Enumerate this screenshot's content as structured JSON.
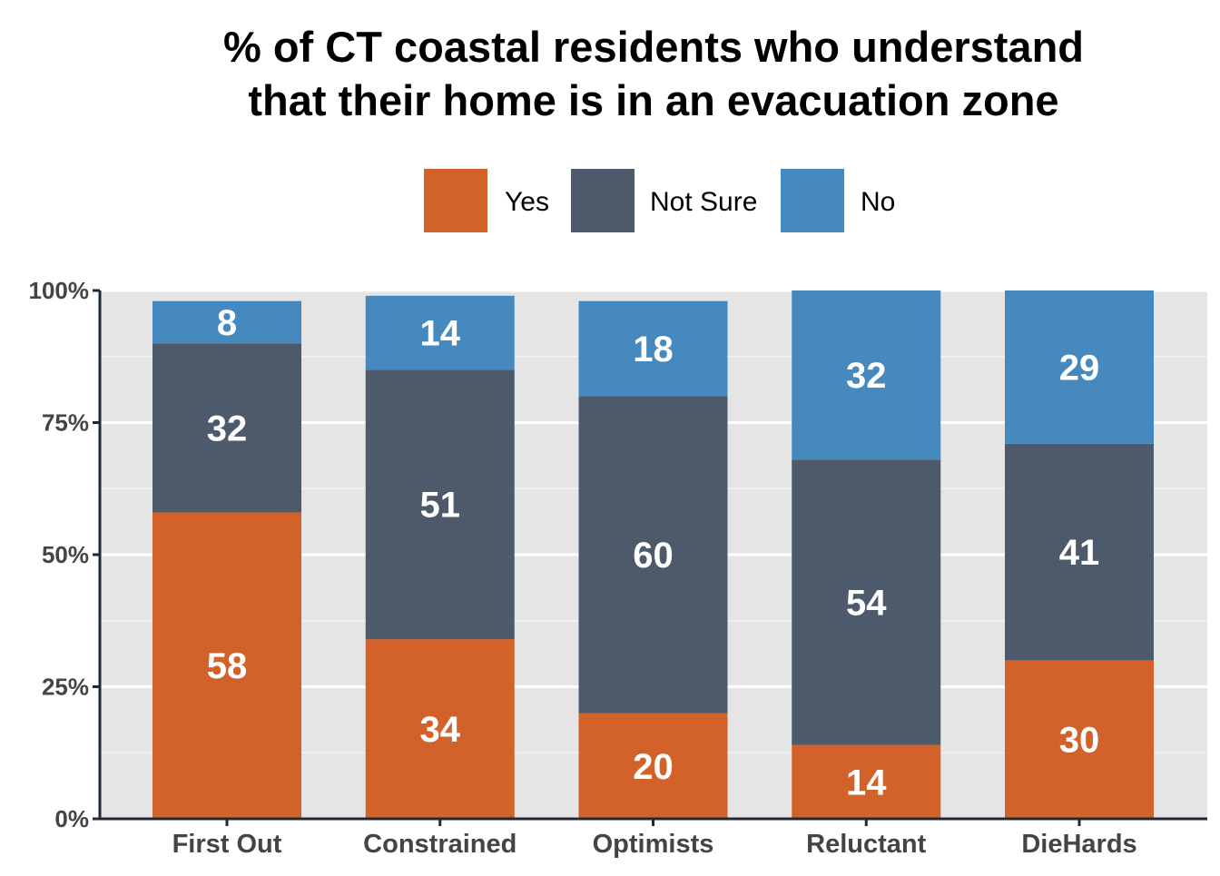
{
  "chart_data": {
    "type": "bar",
    "stacked": true,
    "title_lines": [
      "% of CT coastal residents who understand",
      "that their home is in an evacuation zone"
    ],
    "categories": [
      "First Out",
      "Constrained",
      "Optimists",
      "Reluctant",
      "DieHards"
    ],
    "series": [
      {
        "name": "Yes",
        "color": "#d2622a",
        "values": [
          58,
          34,
          20,
          14,
          30
        ],
        "labels": [
          "58",
          "34",
          "20",
          "14",
          "30"
        ]
      },
      {
        "name": "Not Sure",
        "color": "#4d5a6b",
        "values": [
          32,
          51,
          60,
          54,
          41
        ],
        "labels": [
          "32",
          "51",
          "60",
          "54",
          "41"
        ]
      },
      {
        "name": "No",
        "color": "#4689bf",
        "values": [
          8,
          14,
          18,
          32,
          29
        ],
        "labels": [
          "8",
          "14",
          "18",
          "32",
          "29"
        ]
      }
    ],
    "ylim": [
      0,
      100
    ],
    "yticks": [
      0,
      25,
      50,
      75,
      100
    ],
    "ytick_labels": [
      "0%",
      "25%",
      "50%",
      "75%",
      "100%"
    ],
    "grid": true,
    "legend_position": "top-center",
    "panel_background": "#e5e5e5"
  }
}
